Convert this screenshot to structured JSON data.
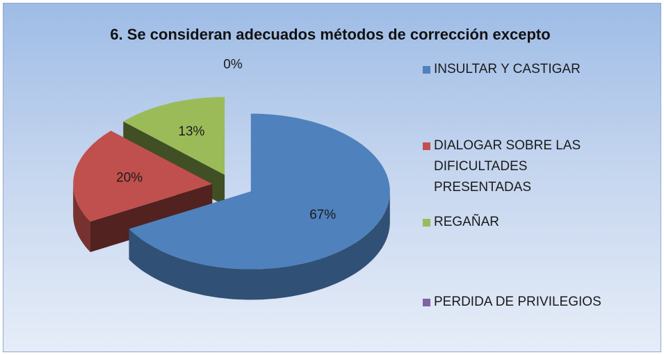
{
  "chart_data": {
    "type": "pie",
    "title": "6. Se consideran adecuados métodos de corrección excepto",
    "categories": [
      "INSULTAR Y CASTIGAR",
      "DIALOGAR SOBRE LAS DIFICULTADES PRESENTADAS",
      "REGAÑAR",
      "PERDIDA DE PRIVILEGIOS"
    ],
    "values": [
      67,
      20,
      13,
      0
    ],
    "value_labels": [
      "67%",
      "20%",
      "13%",
      "0%"
    ],
    "colors": [
      "#4f81bd",
      "#c0504d",
      "#9bbb59",
      "#8064a2"
    ]
  }
}
